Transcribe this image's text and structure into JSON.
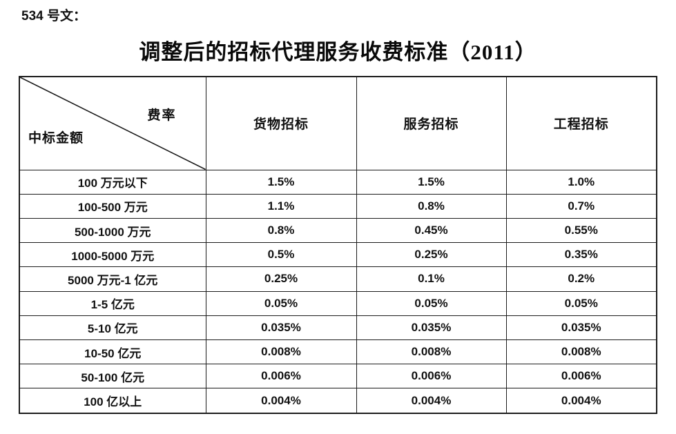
{
  "page": {
    "doc_label": "534 号文：",
    "title": "调整后的招标代理服务收费标准（2011）"
  },
  "table": {
    "corner": {
      "top_right": "费率",
      "bottom_left": "中标金额"
    },
    "columns": [
      "货物招标",
      "服务招标",
      "工程招标"
    ],
    "rows": [
      {
        "label": "100 万元以下",
        "goods": "1.5%",
        "service": "1.5%",
        "engineering": "1.0%"
      },
      {
        "label": "100-500 万元",
        "goods": "1.1%",
        "service": "0.8%",
        "engineering": "0.7%"
      },
      {
        "label": "500-1000 万元",
        "goods": "0.8%",
        "service": "0.45%",
        "engineering": "0.55%"
      },
      {
        "label": "1000-5000 万元",
        "goods": "0.5%",
        "service": "0.25%",
        "engineering": "0.35%"
      },
      {
        "label": "5000 万元-1 亿元",
        "goods": "0.25%",
        "service": "0.1%",
        "engineering": "0.2%"
      },
      {
        "label": "1-5 亿元",
        "goods": "0.05%",
        "service": "0.05%",
        "engineering": "0.05%"
      },
      {
        "label": "5-10 亿元",
        "goods": "0.035%",
        "service": "0.035%",
        "engineering": "0.035%"
      },
      {
        "label": "10-50 亿元",
        "goods": "0.008%",
        "service": "0.008%",
        "engineering": "0.008%"
      },
      {
        "label": "50-100 亿元",
        "goods": "0.006%",
        "service": "0.006%",
        "engineering": "0.006%"
      },
      {
        "label": "100 亿以上",
        "goods": "0.004%",
        "service": "0.004%",
        "engineering": "0.004%"
      }
    ]
  },
  "colors": {
    "text": "#111111",
    "border": "#1a1a1a",
    "background": "#ffffff"
  }
}
